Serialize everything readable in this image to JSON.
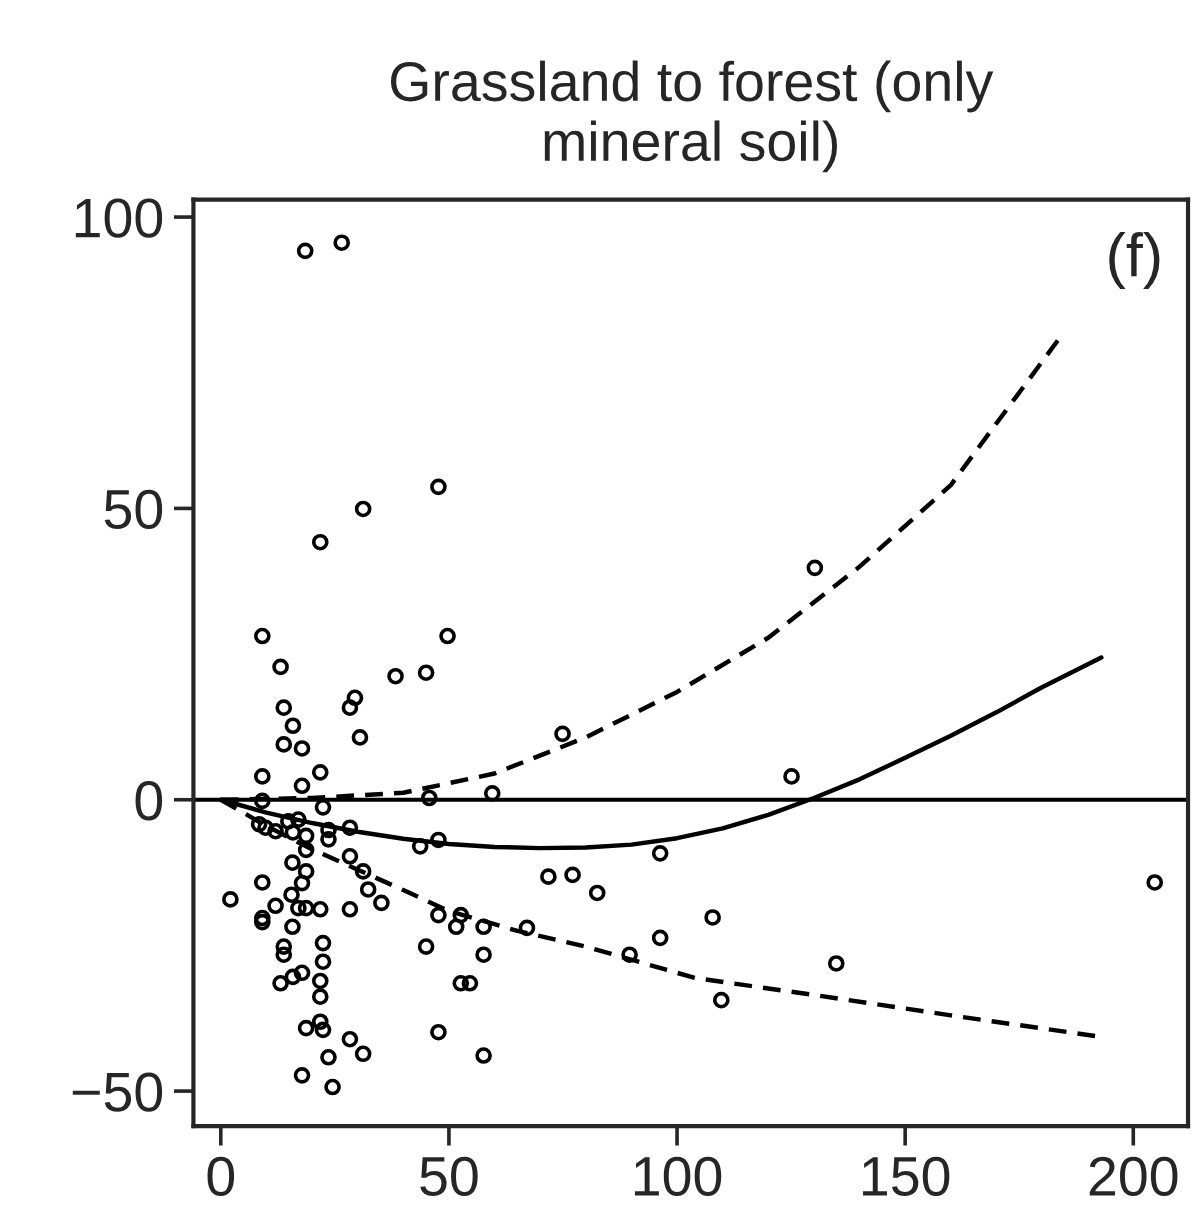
{
  "chart_data": {
    "type": "scatter",
    "title": "Grassland to forest (only\nmineral soil)",
    "annotations": [
      "(f)"
    ],
    "xlim": [
      -6,
      212
    ],
    "ylim": [
      -56,
      103
    ],
    "xticks": [
      0,
      50,
      100,
      150,
      200
    ],
    "yticks": [
      -50,
      0,
      50,
      100
    ],
    "grid": false,
    "ref_lines": [
      {
        "axis": "y",
        "value": 0,
        "color": "#000000",
        "line_style": "solid"
      }
    ],
    "series": [
      {
        "color": "#000000",
        "marker": "circle",
        "x": [
          9.1,
          13.1,
          49.7,
          38.3,
          45.0,
          13.8,
          15.8,
          13.8,
          17.8,
          29.4,
          28.3,
          30.5,
          9.1,
          17.8,
          21.8,
          74.9,
          45.7,
          59.5,
          9.1,
          22.4,
          8.4,
          9.8,
          12.0,
          14.8,
          17.0,
          15.8,
          18.7,
          23.6,
          23.6,
          28.3,
          18.7,
          43.7,
          47.7,
          96.3,
          28.3,
          15.7,
          18.7,
          31.2,
          32.3,
          35.2,
          71.8,
          77.1,
          82.5,
          9.1,
          2.1,
          17.8,
          15.5,
          12.0,
          9.1,
          9.1,
          17.0,
          18.7,
          21.8,
          28.3,
          15.7,
          47.7,
          52.6,
          51.6,
          57.6,
          67.1,
          96.3,
          89.6,
          45.0,
          57.6,
          13.8,
          13.8,
          22.4,
          22.4,
          13.1,
          15.8,
          17.8,
          21.8,
          21.8,
          52.6,
          54.6,
          18.7,
          21.8,
          22.4,
          28.3,
          31.2,
          23.6,
          47.7,
          57.6,
          17.8,
          24.5,
          18.5,
          26.5,
          47.7,
          31.2,
          21.8,
          130.2,
          125.1,
          107.8,
          134.9,
          109.7,
          204.7
        ],
        "values": [
          28.1,
          22.8,
          28.1,
          21.2,
          21.8,
          15.8,
          12.7,
          9.5,
          8.8,
          17.5,
          15.8,
          10.7,
          4.0,
          2.4,
          4.7,
          11.3,
          0.3,
          1.1,
          -0.2,
          -1.3,
          -4.2,
          -4.8,
          -5.4,
          -3.7,
          -3.4,
          -5.6,
          -6.2,
          -5.2,
          -6.8,
          -4.8,
          -8.6,
          -8.0,
          -6.9,
          -9.2,
          -9.7,
          -10.8,
          -12.3,
          -12.3,
          -15.4,
          -17.7,
          -13.2,
          -12.9,
          -16.0,
          -14.2,
          -17.1,
          -14.3,
          -16.3,
          -18.2,
          -20.3,
          -21.0,
          -18.6,
          -18.6,
          -18.8,
          -18.8,
          -21.8,
          -19.8,
          -19.8,
          -21.8,
          -21.8,
          -22.0,
          -23.7,
          -26.6,
          -25.2,
          -26.6,
          -25.2,
          -26.6,
          -24.6,
          -27.8,
          -31.5,
          -30.4,
          -29.7,
          -31.1,
          -33.8,
          -31.5,
          -31.5,
          -39.2,
          -38.1,
          -39.5,
          -41.1,
          -43.6,
          -44.2,
          -39.9,
          -43.9,
          -47.3,
          -49.3,
          94.2,
          95.6,
          53.7,
          49.9,
          44.2,
          39.8,
          4.0,
          -20.2,
          -28.1,
          -34.4,
          -14.2
        ]
      },
      {
        "type": "line",
        "color": "#000000",
        "line_style": "solid",
        "x": [
          0,
          10,
          20,
          30,
          40,
          50,
          60,
          70,
          80,
          90,
          100,
          110,
          120,
          130,
          140,
          150,
          160,
          170,
          180,
          193
        ],
        "values": [
          0,
          -2.2,
          -4,
          -5.5,
          -6.7,
          -7.6,
          -8.1,
          -8.3,
          -8.2,
          -7.7,
          -6.6,
          -4.9,
          -2.6,
          0.3,
          3.5,
          7.2,
          11,
          15,
          19.3,
          24.4
        ]
      },
      {
        "type": "line",
        "color": "#000000",
        "line_style": "dashed",
        "x": [
          0,
          20,
          40,
          60,
          80,
          100,
          120,
          140,
          160,
          184
        ],
        "values": [
          0,
          0.3,
          1.2,
          4.5,
          10.7,
          18.5,
          27.8,
          40,
          54,
          79.4
        ]
      },
      {
        "type": "line",
        "color": "#000000",
        "line_style": "dashed",
        "x": [
          0,
          10,
          20,
          30,
          40,
          50,
          65,
          80,
          104,
          130,
          160,
          193
        ],
        "values": [
          0,
          -4.5,
          -8.5,
          -12,
          -15.5,
          -19.1,
          -22.5,
          -25.2,
          -30.6,
          -33.5,
          -37,
          -40.7
        ]
      }
    ]
  }
}
